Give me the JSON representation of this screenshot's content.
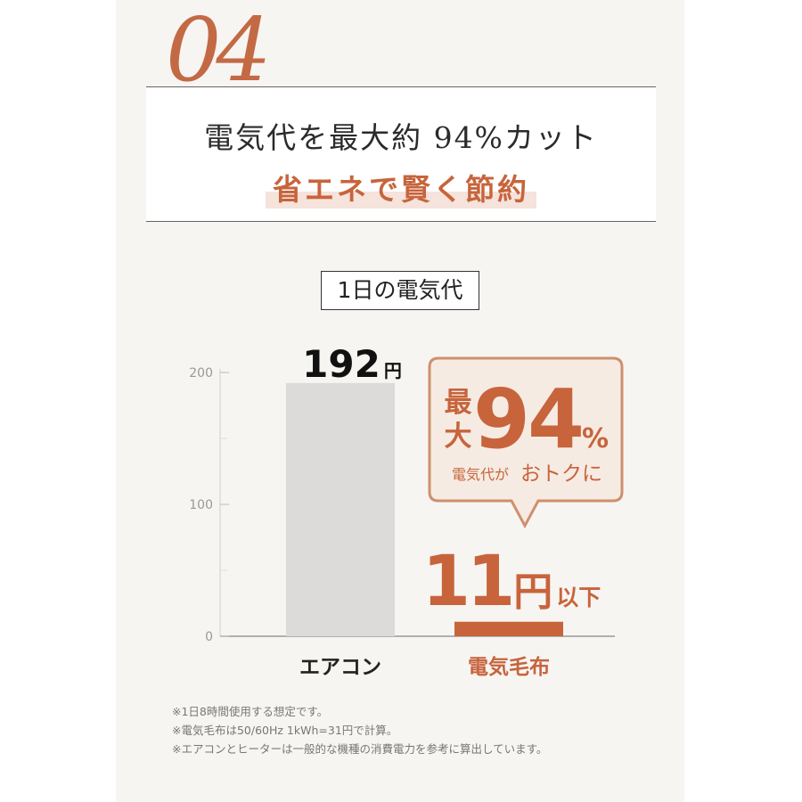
{
  "header": {
    "number": "04",
    "headline": "電気代を最大約 94%カット",
    "subline": "省エネで賢く節約"
  },
  "callout": {
    "line1_prefix_top": "最",
    "line1_prefix_bottom": "大",
    "big_value": "94",
    "percent": "%",
    "caption_small": "電気代が",
    "caption_large": "おトクに"
  },
  "chart_data": {
    "type": "bar",
    "title": "1日の電気代",
    "categories": [
      "エアコン",
      "電気毛布"
    ],
    "values": [
      192,
      11
    ],
    "value_labels": [
      {
        "number": "192",
        "unit": "円",
        "suffix": ""
      },
      {
        "number": "11",
        "unit": "円",
        "suffix": "以下"
      }
    ],
    "yticks": [
      "200",
      "100",
      "0"
    ],
    "ylim": [
      0,
      200
    ],
    "bar_colors": [
      "#dcdbd9",
      "#c7643c"
    ],
    "category_colors": [
      "#222222",
      "#c7643c"
    ],
    "grid": true
  },
  "notes": [
    "※1日8時間使用する想定です。",
    "※電気毛布は50/60Hz 1kWh=31円で計算。",
    "※エアコンとヒーターは一般的な機種の消費電力を参考に算出しています。"
  ],
  "colors": {
    "accent": "#c7643c",
    "panel": "#f7f5f2"
  }
}
